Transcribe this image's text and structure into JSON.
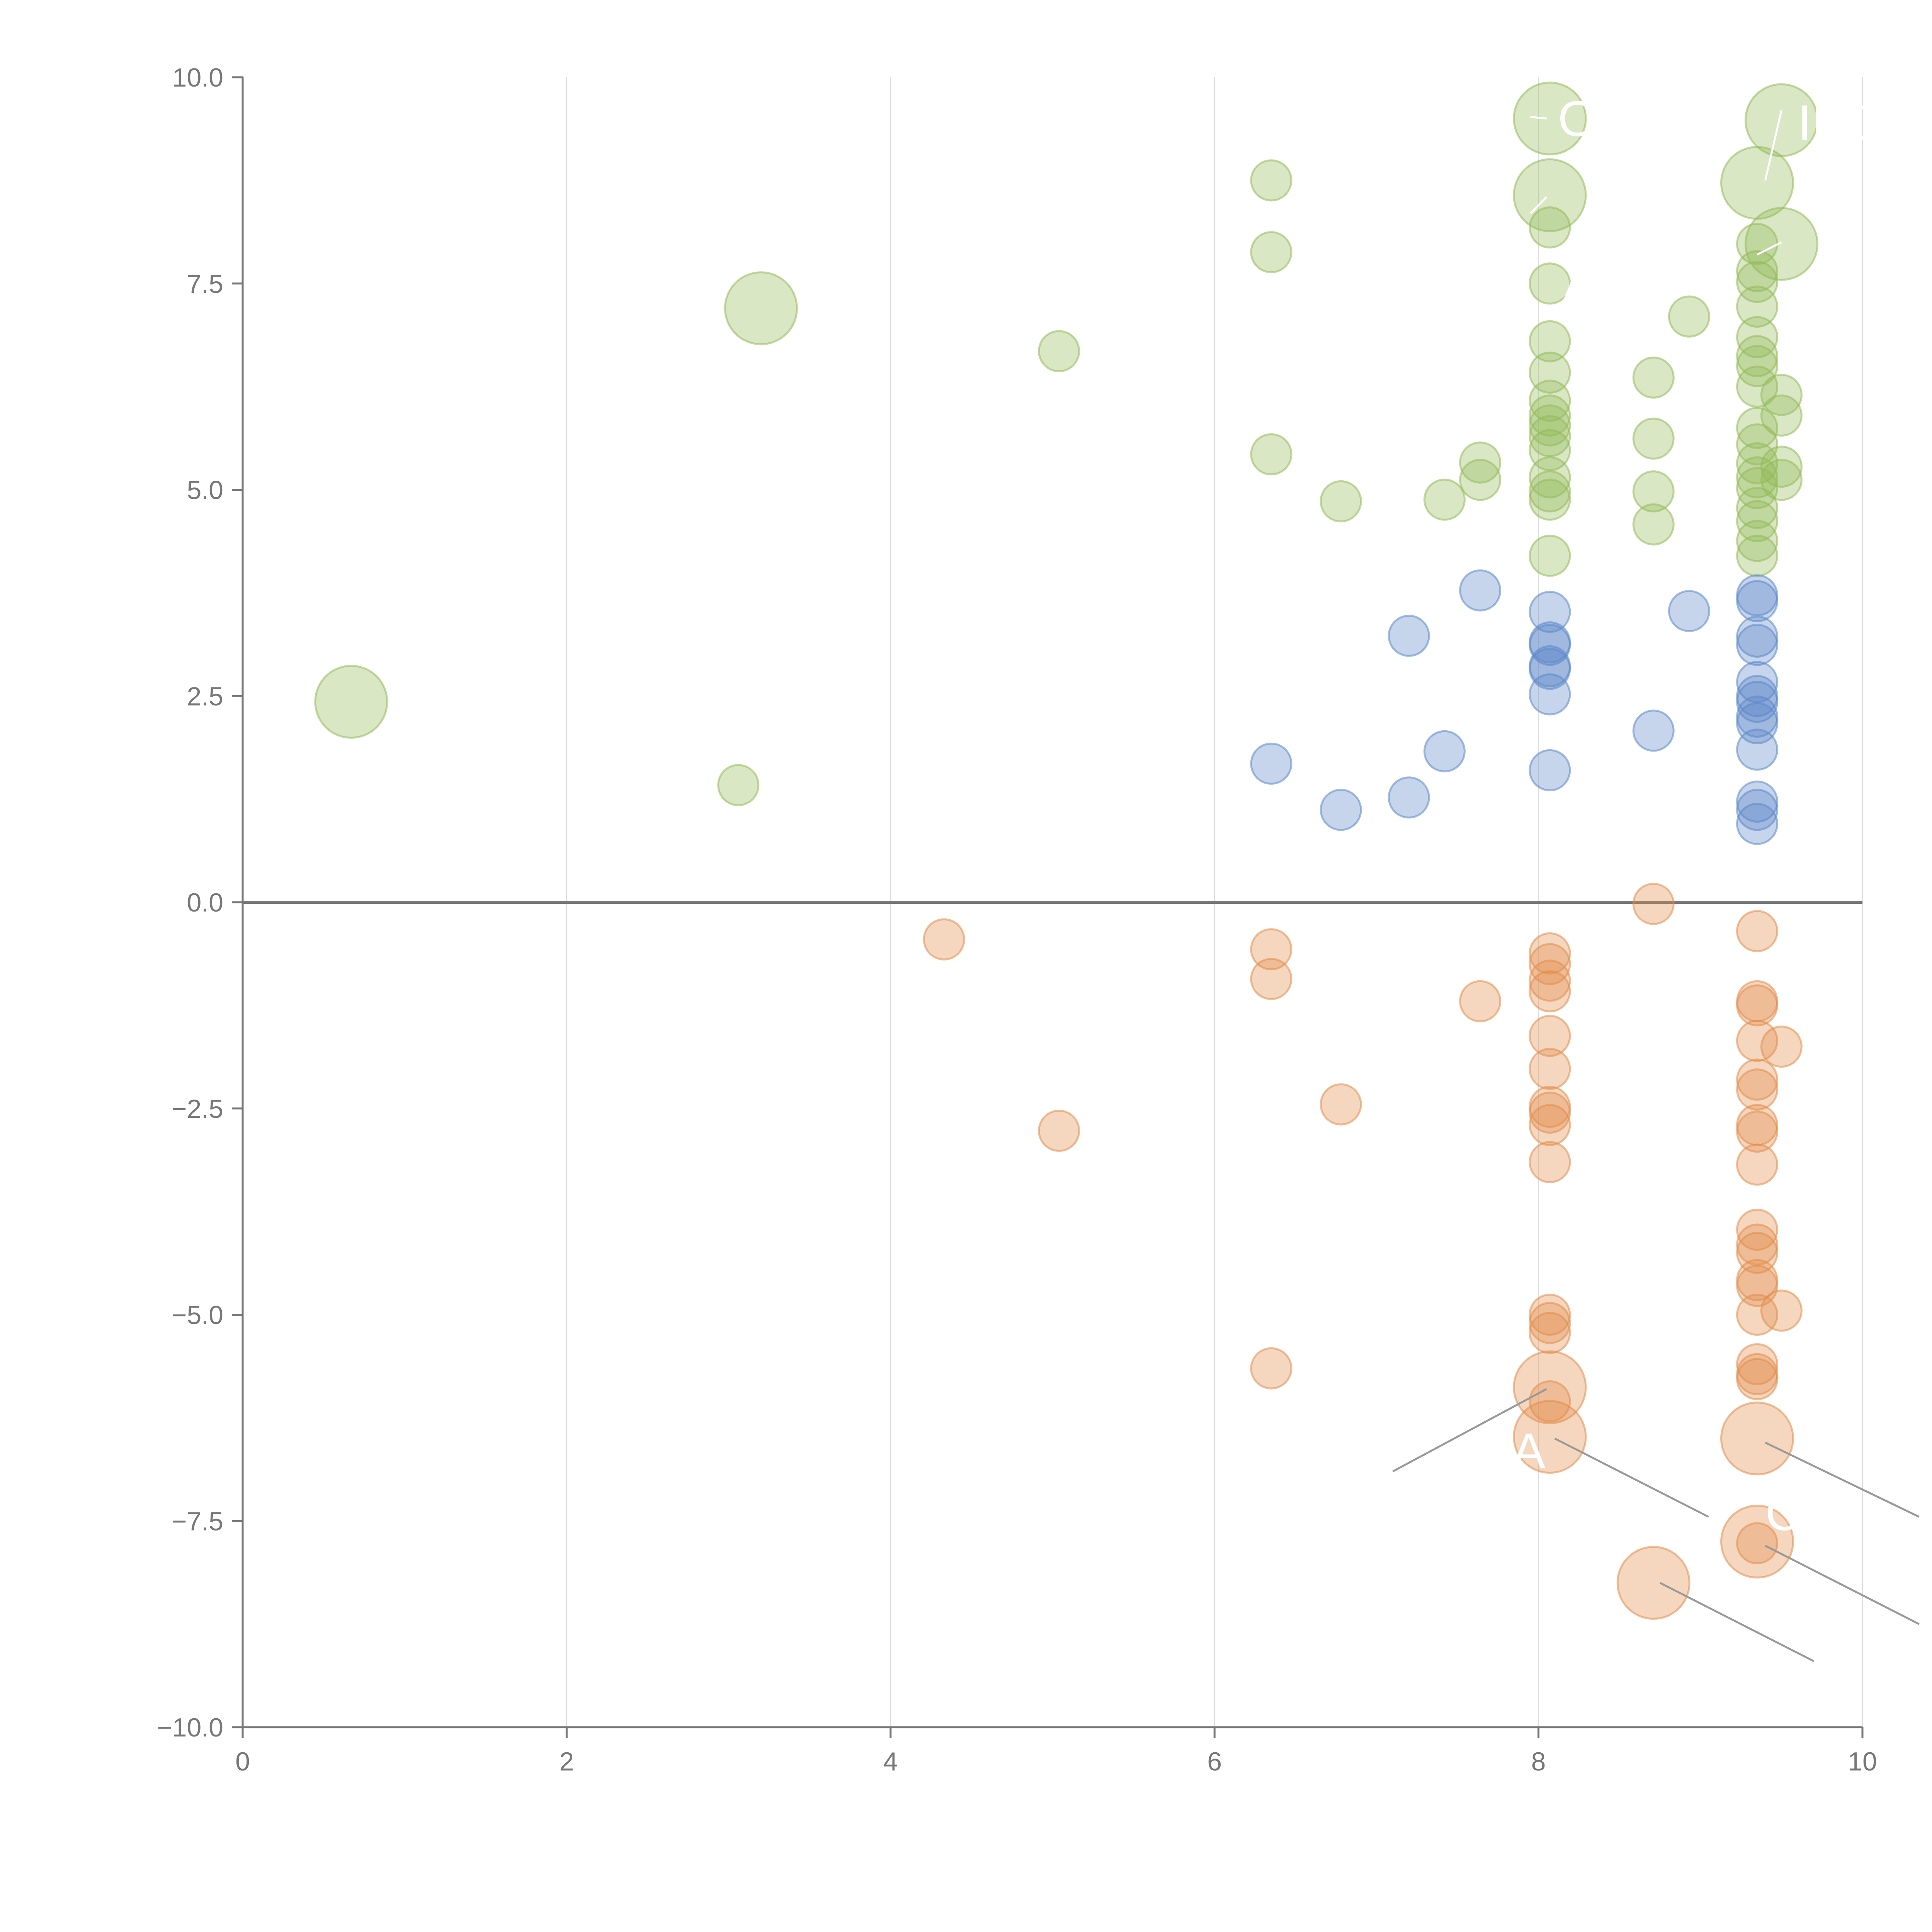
{
  "chart_data": {
    "type": "scatter",
    "title": "",
    "xlabel": "",
    "ylabel": "",
    "xlim": [
      0,
      10
    ],
    "ylim": [
      -10,
      10
    ],
    "grid": "vertical",
    "x_ticks": [
      "0",
      "2",
      "4",
      "6",
      "8",
      "10"
    ],
    "y_ticks": [
      "10.0",
      "7.5",
      "5.0",
      "2.5",
      "0.0",
      "−2.5",
      "−5.0",
      "−7.5",
      "−10.0"
    ],
    "x_tick_values": [
      0,
      2,
      4,
      6,
      8,
      10
    ],
    "y_tick_values": [
      10,
      7.5,
      5,
      2.5,
      0,
      -2.5,
      -5,
      -7.5,
      -10
    ],
    "colors": {
      "green": "#93b958",
      "blue": "#5b88c8",
      "orange": "#e28d4a",
      "axis": "#777777",
      "grid": "#dcdcdc",
      "zero_line": "#777777",
      "leader": "#999999",
      "label_text": "#ffffff"
    },
    "series": [
      {
        "name": "green",
        "color": "#93b958",
        "points": [
          {
            "x": 0.67,
            "y": 2.43,
            "s": 3.2
          },
          {
            "x": 3.2,
            "y": 7.2,
            "s": 3.2
          },
          {
            "x": 3.06,
            "y": 1.42,
            "s": 1.0
          },
          {
            "x": 5.04,
            "y": 6.68,
            "s": 1.0
          },
          {
            "x": 6.35,
            "y": 8.75,
            "s": 1.0
          },
          {
            "x": 6.35,
            "y": 7.88,
            "s": 1.0
          },
          {
            "x": 6.35,
            "y": 5.43,
            "s": 1.0
          },
          {
            "x": 6.78,
            "y": 4.86,
            "s": 1.0
          },
          {
            "x": 7.42,
            "y": 4.88,
            "s": 1.0
          },
          {
            "x": 7.64,
            "y": 5.33,
            "s": 1.0
          },
          {
            "x": 7.64,
            "y": 5.12,
            "s": 1.0
          },
          {
            "x": 8.07,
            "y": 9.5,
            "s": 3.2
          },
          {
            "x": 8.07,
            "y": 8.57,
            "s": 3.2
          },
          {
            "x": 8.07,
            "y": 8.18,
            "s": 1.0
          },
          {
            "x": 8.07,
            "y": 7.5,
            "s": 1.0
          },
          {
            "x": 8.07,
            "y": 6.8,
            "s": 1.0
          },
          {
            "x": 8.07,
            "y": 6.42,
            "s": 1.0
          },
          {
            "x": 8.07,
            "y": 6.08,
            "s": 1.0
          },
          {
            "x": 8.07,
            "y": 5.9,
            "s": 1.0
          },
          {
            "x": 8.07,
            "y": 5.78,
            "s": 1.0
          },
          {
            "x": 8.07,
            "y": 5.65,
            "s": 1.0
          },
          {
            "x": 8.07,
            "y": 5.48,
            "s": 1.0
          },
          {
            "x": 8.07,
            "y": 5.15,
            "s": 1.0
          },
          {
            "x": 8.07,
            "y": 4.98,
            "s": 1.0
          },
          {
            "x": 8.07,
            "y": 4.88,
            "s": 1.0
          },
          {
            "x": 8.07,
            "y": 4.2,
            "s": 1.0
          },
          {
            "x": 8.71,
            "y": 6.36,
            "s": 1.0
          },
          {
            "x": 8.71,
            "y": 5.62,
            "s": 1.0
          },
          {
            "x": 8.71,
            "y": 4.98,
            "s": 1.0
          },
          {
            "x": 8.71,
            "y": 4.58,
            "s": 1.0
          },
          {
            "x": 8.93,
            "y": 7.1,
            "s": 1.0
          },
          {
            "x": 9.35,
            "y": 8.72,
            "s": 3.2
          },
          {
            "x": 9.5,
            "y": 9.48,
            "s": 3.2
          },
          {
            "x": 9.5,
            "y": 7.98,
            "s": 3.2
          },
          {
            "x": 9.35,
            "y": 7.98,
            "s": 1.0
          },
          {
            "x": 9.35,
            "y": 7.65,
            "s": 1.0
          },
          {
            "x": 9.35,
            "y": 7.52,
            "s": 1.0
          },
          {
            "x": 9.35,
            "y": 7.22,
            "s": 1.0
          },
          {
            "x": 9.35,
            "y": 6.85,
            "s": 1.0
          },
          {
            "x": 9.35,
            "y": 6.62,
            "s": 1.0
          },
          {
            "x": 9.35,
            "y": 6.5,
            "s": 1.0
          },
          {
            "x": 9.35,
            "y": 6.25,
            "s": 1.0
          },
          {
            "x": 9.35,
            "y": 5.75,
            "s": 1.0
          },
          {
            "x": 9.35,
            "y": 5.55,
            "s": 1.0
          },
          {
            "x": 9.35,
            "y": 5.32,
            "s": 1.0
          },
          {
            "x": 9.35,
            "y": 5.15,
            "s": 1.0
          },
          {
            "x": 9.35,
            "y": 5.02,
            "s": 1.0
          },
          {
            "x": 9.35,
            "y": 4.78,
            "s": 1.0
          },
          {
            "x": 9.35,
            "y": 4.62,
            "s": 1.0
          },
          {
            "x": 9.35,
            "y": 4.38,
            "s": 1.0
          },
          {
            "x": 9.35,
            "y": 4.2,
            "s": 1.0
          },
          {
            "x": 9.5,
            "y": 6.15,
            "s": 1.0
          },
          {
            "x": 9.5,
            "y": 5.9,
            "s": 1.0
          },
          {
            "x": 9.5,
            "y": 5.28,
            "s": 1.0
          },
          {
            "x": 9.5,
            "y": 5.12,
            "s": 1.0
          }
        ]
      },
      {
        "name": "blue",
        "color": "#5b88c8",
        "points": [
          {
            "x": 6.35,
            "y": 1.68,
            "s": 1.0
          },
          {
            "x": 6.78,
            "y": 1.12,
            "s": 1.0
          },
          {
            "x": 7.2,
            "y": 3.23,
            "s": 1.0
          },
          {
            "x": 7.2,
            "y": 1.27,
            "s": 1.0
          },
          {
            "x": 7.42,
            "y": 1.83,
            "s": 1.0
          },
          {
            "x": 7.64,
            "y": 3.78,
            "s": 1.0
          },
          {
            "x": 8.07,
            "y": 3.52,
            "s": 1.0
          },
          {
            "x": 8.07,
            "y": 3.15,
            "s": 1.0
          },
          {
            "x": 8.07,
            "y": 3.12,
            "s": 1.0
          },
          {
            "x": 8.07,
            "y": 2.86,
            "s": 1.0
          },
          {
            "x": 8.07,
            "y": 2.83,
            "s": 1.0
          },
          {
            "x": 8.07,
            "y": 2.52,
            "s": 1.0
          },
          {
            "x": 8.07,
            "y": 1.6,
            "s": 1.0
          },
          {
            "x": 8.71,
            "y": 2.08,
            "s": 1.0
          },
          {
            "x": 8.93,
            "y": 3.53,
            "s": 1.0
          },
          {
            "x": 9.35,
            "y": 3.72,
            "s": 1.0
          },
          {
            "x": 9.35,
            "y": 3.65,
            "s": 1.0
          },
          {
            "x": 9.35,
            "y": 3.22,
            "s": 1.0
          },
          {
            "x": 9.35,
            "y": 3.12,
            "s": 1.0
          },
          {
            "x": 9.35,
            "y": 2.67,
            "s": 1.0
          },
          {
            "x": 9.35,
            "y": 2.5,
            "s": 1.0
          },
          {
            "x": 9.35,
            "y": 2.43,
            "s": 1.0
          },
          {
            "x": 9.35,
            "y": 2.25,
            "s": 1.0
          },
          {
            "x": 9.35,
            "y": 2.17,
            "s": 1.0
          },
          {
            "x": 9.35,
            "y": 1.85,
            "s": 1.0
          },
          {
            "x": 9.35,
            "y": 1.22,
            "s": 1.0
          },
          {
            "x": 9.35,
            "y": 1.12,
            "s": 1.0
          },
          {
            "x": 9.35,
            "y": 0.95,
            "s": 1.0
          }
        ]
      },
      {
        "name": "orange",
        "color": "#e28d4a",
        "points": [
          {
            "x": 4.33,
            "y": -0.45,
            "s": 1.0
          },
          {
            "x": 5.04,
            "y": -2.77,
            "s": 1.0
          },
          {
            "x": 6.35,
            "y": -0.57,
            "s": 1.0
          },
          {
            "x": 6.35,
            "y": -0.93,
            "s": 1.0
          },
          {
            "x": 6.35,
            "y": -5.65,
            "s": 1.0
          },
          {
            "x": 6.78,
            "y": -2.45,
            "s": 1.0
          },
          {
            "x": 7.64,
            "y": -1.2,
            "s": 1.0
          },
          {
            "x": 8.07,
            "y": -0.62,
            "s": 1.0
          },
          {
            "x": 8.07,
            "y": -0.75,
            "s": 1.0
          },
          {
            "x": 8.07,
            "y": -0.95,
            "s": 1.0
          },
          {
            "x": 8.07,
            "y": -1.08,
            "s": 1.0
          },
          {
            "x": 8.07,
            "y": -1.62,
            "s": 1.0
          },
          {
            "x": 8.07,
            "y": -2.02,
            "s": 1.0
          },
          {
            "x": 8.07,
            "y": -2.48,
            "s": 1.0
          },
          {
            "x": 8.07,
            "y": -2.55,
            "s": 1.0
          },
          {
            "x": 8.07,
            "y": -2.7,
            "s": 1.0
          },
          {
            "x": 8.07,
            "y": -3.15,
            "s": 1.0
          },
          {
            "x": 8.07,
            "y": -5.0,
            "s": 1.0
          },
          {
            "x": 8.07,
            "y": -5.1,
            "s": 1.0
          },
          {
            "x": 8.07,
            "y": -5.22,
            "s": 1.0
          },
          {
            "x": 8.07,
            "y": -5.88,
            "s": 3.2
          },
          {
            "x": 8.07,
            "y": -6.05,
            "s": 1.0
          },
          {
            "x": 8.07,
            "y": -6.48,
            "s": 3.2
          },
          {
            "x": 8.71,
            "y": -0.02,
            "s": 1.0
          },
          {
            "x": 8.71,
            "y": -8.25,
            "s": 3.2
          },
          {
            "x": 9.35,
            "y": -0.35,
            "s": 1.0
          },
          {
            "x": 9.35,
            "y": -1.2,
            "s": 1.0
          },
          {
            "x": 9.35,
            "y": -1.25,
            "s": 1.0
          },
          {
            "x": 9.35,
            "y": -1.68,
            "s": 1.0
          },
          {
            "x": 9.35,
            "y": -2.15,
            "s": 1.0
          },
          {
            "x": 9.35,
            "y": -2.27,
            "s": 1.0
          },
          {
            "x": 9.35,
            "y": -2.7,
            "s": 1.0
          },
          {
            "x": 9.35,
            "y": -2.78,
            "s": 1.0
          },
          {
            "x": 9.35,
            "y": -3.18,
            "s": 1.0
          },
          {
            "x": 9.35,
            "y": -3.97,
            "s": 1.0
          },
          {
            "x": 9.35,
            "y": -4.15,
            "s": 1.0
          },
          {
            "x": 9.35,
            "y": -4.25,
            "s": 1.0
          },
          {
            "x": 9.35,
            "y": -4.58,
            "s": 1.0
          },
          {
            "x": 9.35,
            "y": -4.65,
            "s": 1.0
          },
          {
            "x": 9.35,
            "y": -5.0,
            "s": 1.0
          },
          {
            "x": 9.35,
            "y": -5.6,
            "s": 1.0
          },
          {
            "x": 9.35,
            "y": -5.72,
            "s": 1.0
          },
          {
            "x": 9.35,
            "y": -5.78,
            "s": 1.0
          },
          {
            "x": 9.35,
            "y": -6.5,
            "s": 3.2
          },
          {
            "x": 9.35,
            "y": -7.75,
            "s": 3.2
          },
          {
            "x": 9.35,
            "y": -7.77,
            "s": 1.0
          },
          {
            "x": 9.5,
            "y": -1.75,
            "s": 1.0
          },
          {
            "x": 9.5,
            "y": -4.95,
            "s": 1.0
          }
        ]
      }
    ],
    "annotations": [
      {
        "text": "O",
        "x": 8.12,
        "y": 9.5
      },
      {
        "text": "INJ",
        "x": 9.6,
        "y": 9.45
      },
      {
        "text": "A",
        "x": 8.15,
        "y": 7.5
      },
      {
        "text": "−",
        "x": 9.05,
        "y": 7.3
      },
      {
        "text": "IA",
        "x": 7.75,
        "y": -6.65
      },
      {
        "text": "C",
        "x": 9.4,
        "y": -7.4
      }
    ],
    "leader_lines": [
      {
        "x1": 7.1,
        "y1": -6.9,
        "x2": 8.05,
        "y2": -5.9,
        "color": "#999999"
      },
      {
        "x1": 8.1,
        "y1": -6.5,
        "x2": 9.05,
        "y2": -7.45,
        "color": "#999999"
      },
      {
        "x1": 9.4,
        "y1": -6.55,
        "x2": 10.35,
        "y2": -7.45,
        "color": "#999999"
      },
      {
        "x1": 9.4,
        "y1": -7.8,
        "x2": 10.35,
        "y2": -8.75,
        "color": "#999999"
      },
      {
        "x1": 8.75,
        "y1": -8.25,
        "x2": 9.7,
        "y2": -9.2,
        "color": "#999999"
      },
      {
        "x1": 7.95,
        "y1": 9.52,
        "x2": 8.05,
        "y2": 9.5,
        "color": "#ffffff"
      },
      {
        "x1": 7.95,
        "y1": 8.35,
        "x2": 8.05,
        "y2": 8.55,
        "color": "#ffffff"
      },
      {
        "x1": 9.5,
        "y1": 9.6,
        "x2": 9.4,
        "y2": 8.75,
        "color": "#ffffff"
      },
      {
        "x1": 9.35,
        "y1": 7.85,
        "x2": 9.5,
        "y2": 8.0,
        "color": "#ffffff"
      }
    ]
  }
}
